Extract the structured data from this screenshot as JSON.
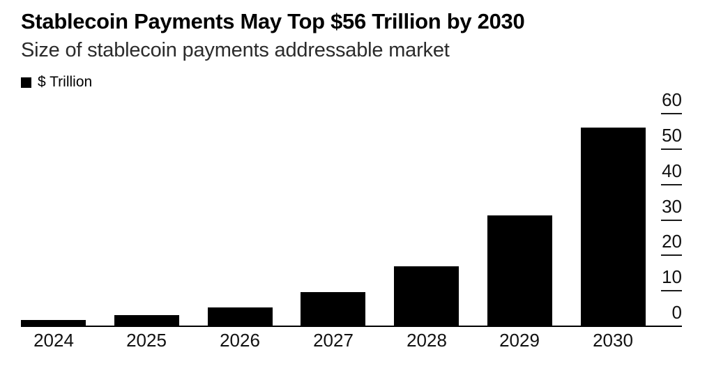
{
  "header": {
    "title": "Stablecoin Payments May Top $56 Trillion by 2030",
    "subtitle": "Size of stablecoin payments addressable market"
  },
  "legend": {
    "marker": "black-square",
    "label": "$ Trillion"
  },
  "colors": {
    "bar": "#000000",
    "background": "#ffffff",
    "text": "#000000"
  },
  "chart_data": {
    "type": "bar",
    "title": "Stablecoin Payments May Top $56 Trillion by 2030",
    "subtitle": "Size of stablecoin payments addressable market",
    "legend_entries": [
      "$ Trillion"
    ],
    "legend_position": "top-left",
    "unit": "$ Trillion",
    "categories": [
      "2024",
      "2025",
      "2026",
      "2027",
      "2028",
      "2029",
      "2030"
    ],
    "values": [
      1.8,
      3.1,
      5.4,
      9.6,
      17,
      31.3,
      56
    ],
    "xlabel": "",
    "ylabel": "$ Trillion",
    "ylim": [
      0,
      60
    ],
    "yticks": [
      0,
      10,
      20,
      30,
      40,
      50,
      60
    ],
    "y_axis_side": "right",
    "grid": false,
    "bar_color": "#000000",
    "background": "#ffffff"
  }
}
